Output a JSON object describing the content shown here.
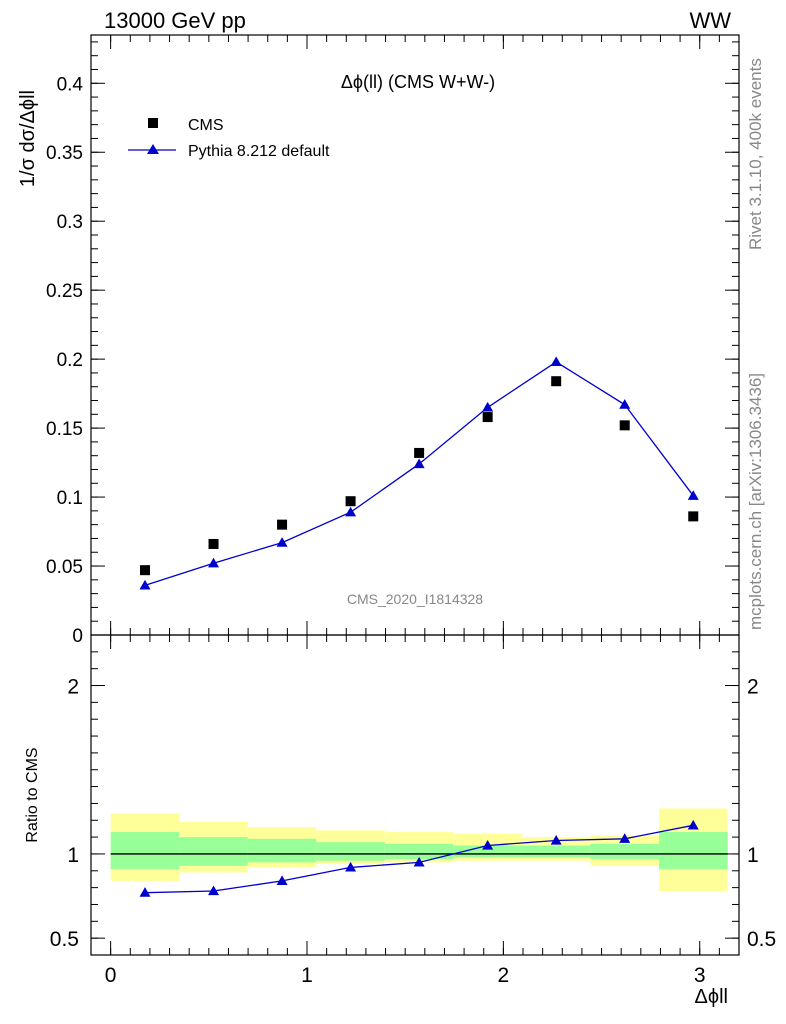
{
  "header": {
    "left": "13000 GeV pp",
    "right": "WW"
  },
  "side_labels": {
    "rivet": "Rivet 3.1.10,  400k events",
    "mcplots": "mcplots.cern.ch [arXiv:1306.3436]"
  },
  "chart_data": [
    {
      "type": "scatter",
      "panel": "main",
      "title": "Δϕ(ll) (CMS W+W-)",
      "watermark": "CMS_2020_I1814328",
      "ylabel": "1/σ dσ/Δϕll",
      "ylim": [
        0,
        0.435
      ],
      "xlim": [
        -0.1,
        3.2
      ],
      "yticks": [
        0,
        0.05,
        0.1,
        0.15,
        0.2,
        0.25,
        0.3,
        0.35,
        0.4
      ],
      "ytick_labels": [
        "0",
        "0.05",
        "0.1",
        "0.15",
        "0.2",
        "0.25",
        "0.3",
        "0.35",
        "0.4"
      ],
      "legend_position": "top-left",
      "x": [
        0.175,
        0.524,
        0.873,
        1.222,
        1.571,
        1.92,
        2.269,
        2.618,
        2.967
      ],
      "x_edges": [
        0.0,
        0.349,
        0.698,
        1.047,
        1.396,
        1.745,
        2.094,
        2.443,
        2.793,
        3.142
      ],
      "series": [
        {
          "name": "CMS",
          "marker": "square",
          "color": "#000000",
          "values": [
            0.047,
            0.066,
            0.08,
            0.097,
            0.132,
            0.158,
            0.184,
            0.152,
            0.086
          ]
        },
        {
          "name": "Pythia 8.212 default",
          "marker": "triangle",
          "color": "#0000cc",
          "values": [
            0.036,
            0.052,
            0.067,
            0.089,
            0.124,
            0.165,
            0.198,
            0.167,
            0.101
          ]
        }
      ]
    },
    {
      "type": "line",
      "panel": "ratio",
      "ylabel": "Ratio to CMS",
      "xlabel": "Δϕll",
      "ylim": [
        0.4,
        2.3
      ],
      "xlim": [
        -0.1,
        3.2
      ],
      "xticks": [
        0,
        1,
        2,
        3
      ],
      "xtick_labels": [
        "0",
        "1",
        "2",
        "3"
      ],
      "yticks": [
        0.5,
        1,
        2
      ],
      "ytick_labels": [
        "0.5",
        "1",
        "2"
      ],
      "bands": {
        "x_edges": [
          0.0,
          0.349,
          0.698,
          1.047,
          1.396,
          1.745,
          2.094,
          2.443,
          2.793,
          3.142
        ],
        "yellow": [
          [
            0.84,
            1.24
          ],
          [
            0.89,
            1.19
          ],
          [
            0.92,
            1.16
          ],
          [
            0.94,
            1.14
          ],
          [
            0.95,
            1.13
          ],
          [
            0.96,
            1.12
          ],
          [
            0.96,
            1.1
          ],
          [
            0.93,
            1.11
          ],
          [
            0.78,
            1.27
          ]
        ],
        "green": [
          [
            0.91,
            1.13
          ],
          [
            0.93,
            1.1
          ],
          [
            0.95,
            1.09
          ],
          [
            0.96,
            1.07
          ],
          [
            0.97,
            1.06
          ],
          [
            0.98,
            1.05
          ],
          [
            0.98,
            1.05
          ],
          [
            0.97,
            1.06
          ],
          [
            0.91,
            1.13
          ]
        ],
        "yellow_color": "#ffff99",
        "green_color": "#99ff99"
      },
      "x": [
        0.175,
        0.524,
        0.873,
        1.222,
        1.571,
        1.92,
        2.269,
        2.618,
        2.967
      ],
      "series": [
        {
          "name": "Pythia 8.212 default",
          "marker": "triangle",
          "color": "#0000cc",
          "values": [
            0.77,
            0.78,
            0.84,
            0.92,
            0.95,
            1.05,
            1.08,
            1.09,
            1.17
          ]
        }
      ]
    }
  ]
}
